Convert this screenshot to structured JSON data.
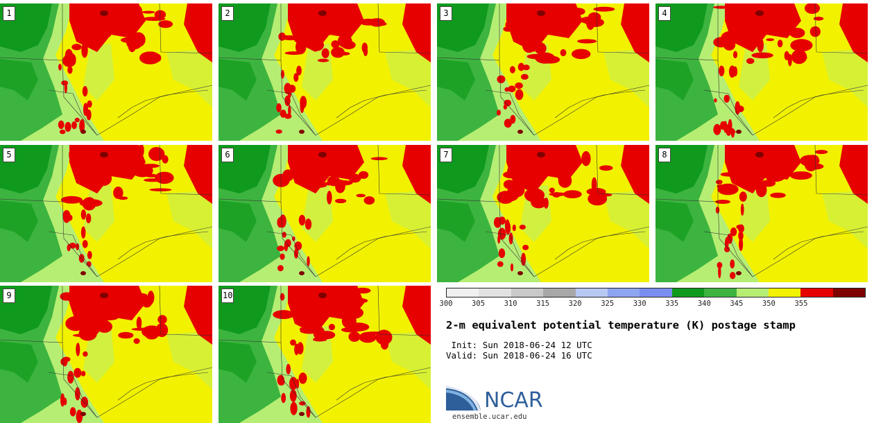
{
  "title": "2-m equivalent potential temperature (K) postage stamp",
  "init_label": "Init:",
  "init_value": "Sun 2018-06-24 12 UTC",
  "valid_label": "Valid:",
  "valid_value": "Sun 2018-06-24 16 UTC",
  "logo": {
    "text": "NCAR",
    "url": "ensemble.ucar.edu"
  },
  "panels": [
    {
      "label": "1"
    },
    {
      "label": "2"
    },
    {
      "label": "3"
    },
    {
      "label": "4"
    },
    {
      "label": "5"
    },
    {
      "label": "6"
    },
    {
      "label": "7"
    },
    {
      "label": "8"
    },
    {
      "label": "9"
    },
    {
      "label": "10"
    }
  ],
  "colorbar": {
    "ticks": [
      "300",
      "305",
      "310",
      "315",
      "320",
      "325",
      "330",
      "335",
      "340",
      "345",
      "350",
      "355"
    ],
    "colors": [
      "#f0f0f0",
      "#e2e2e2",
      "#c9c9c9",
      "#a8a8a8",
      "#b7c9f3",
      "#8ea6f0",
      "#7a8ef0",
      "#0f9a1d",
      "#3db43f",
      "#b6ee74",
      "#f2f200",
      "#e60000",
      "#7e0000"
    ]
  },
  "map_colors": {
    "dark_green": "#0f9a1d",
    "mid_green": "#3db43f",
    "light_green": "#b6ee74",
    "yellow": "#f2f200",
    "red": "#e60000",
    "dark_red": "#7e0000",
    "border": "#333333"
  }
}
